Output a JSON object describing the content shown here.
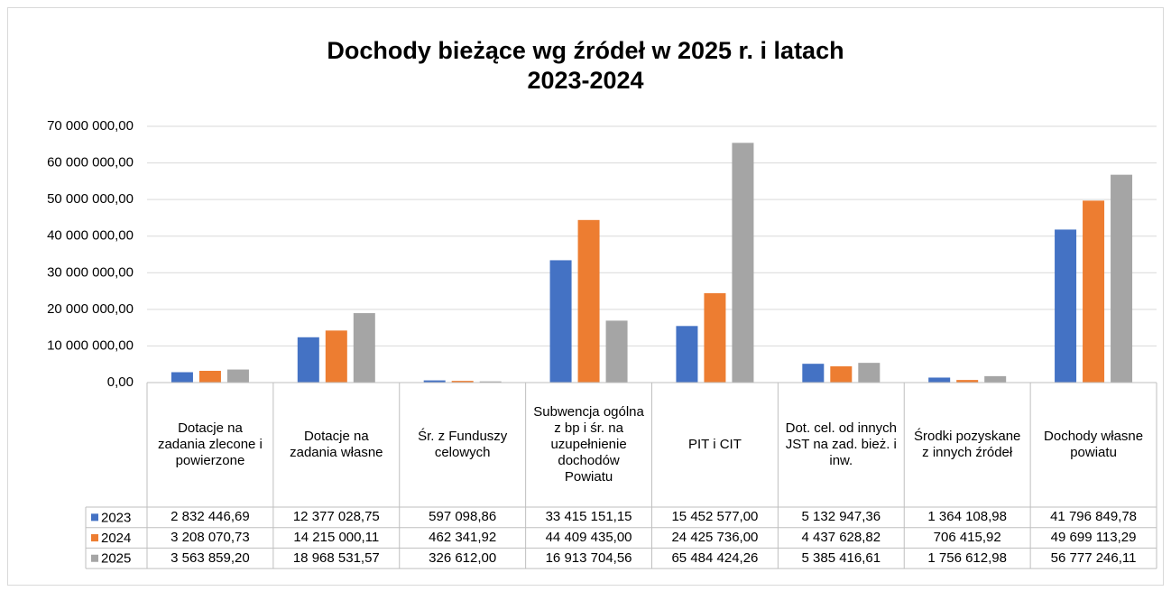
{
  "chart_data": {
    "type": "bar",
    "title": "Dochody bieżące wg źródeł w 2025 r. i latach 2023-2024",
    "categories": [
      "Dotacje na zadania zlecone i powierzone",
      "Dotacje na zadania własne",
      "Śr. z Funduszy celowych",
      "Subwencja ogólna z bp i śr. na uzupełnienie dochodów Powiatu",
      "PIT i CIT",
      "Dot. cel. od innych JST na zad. bież. i inw.",
      "Środki pozyskane z innych źródeł",
      "Dochody własne powiatu"
    ],
    "series": [
      {
        "name": "2023",
        "color": "#4472c4",
        "values": [
          2832446.69,
          12377028.75,
          597098.86,
          33415151.15,
          15452577.0,
          5132947.36,
          1364108.98,
          41796849.78
        ],
        "value_labels": [
          "2 832 446,69",
          "12 377 028,75",
          "597 098,86",
          "33 415 151,15",
          "15 452 577,00",
          "5 132 947,36",
          "1 364 108,98",
          "41 796 849,78"
        ]
      },
      {
        "name": "2024",
        "color": "#ed7d31",
        "values": [
          3208070.73,
          14215000.11,
          462341.92,
          44409435.0,
          24425736.0,
          4437628.82,
          706415.92,
          49699113.29
        ],
        "value_labels": [
          "3 208 070,73",
          "14 215 000,11",
          "462 341,92",
          "44 409 435,00",
          "24 425 736,00",
          "4 437 628,82",
          "706 415,92",
          "49 699 113,29"
        ]
      },
      {
        "name": "2025",
        "color": "#a5a5a5",
        "values": [
          3563859.2,
          18968531.57,
          326612.0,
          16913704.56,
          65484424.26,
          5385416.61,
          1756612.98,
          56777246.11
        ],
        "value_labels": [
          "3 563 859,20",
          "18 968 531,57",
          "326 612,00",
          "16 913 704,56",
          "65 484 424,26",
          "5 385 416,61",
          "1 756 612,98",
          "56 777 246,11"
        ]
      }
    ],
    "ylim": [
      0,
      70000000
    ],
    "yticks": [
      {
        "value": 0,
        "label": "0,00"
      },
      {
        "value": 10000000,
        "label": "10 000 000,00"
      },
      {
        "value": 20000000,
        "label": "20 000 000,00"
      },
      {
        "value": 30000000,
        "label": "30 000 000,00"
      },
      {
        "value": 40000000,
        "label": "40 000 000,00"
      },
      {
        "value": 50000000,
        "label": "50 000 000,00"
      },
      {
        "value": 60000000,
        "label": "60 000 000,00"
      },
      {
        "value": 70000000,
        "label": "70 000 000,00"
      }
    ],
    "grid": true
  }
}
